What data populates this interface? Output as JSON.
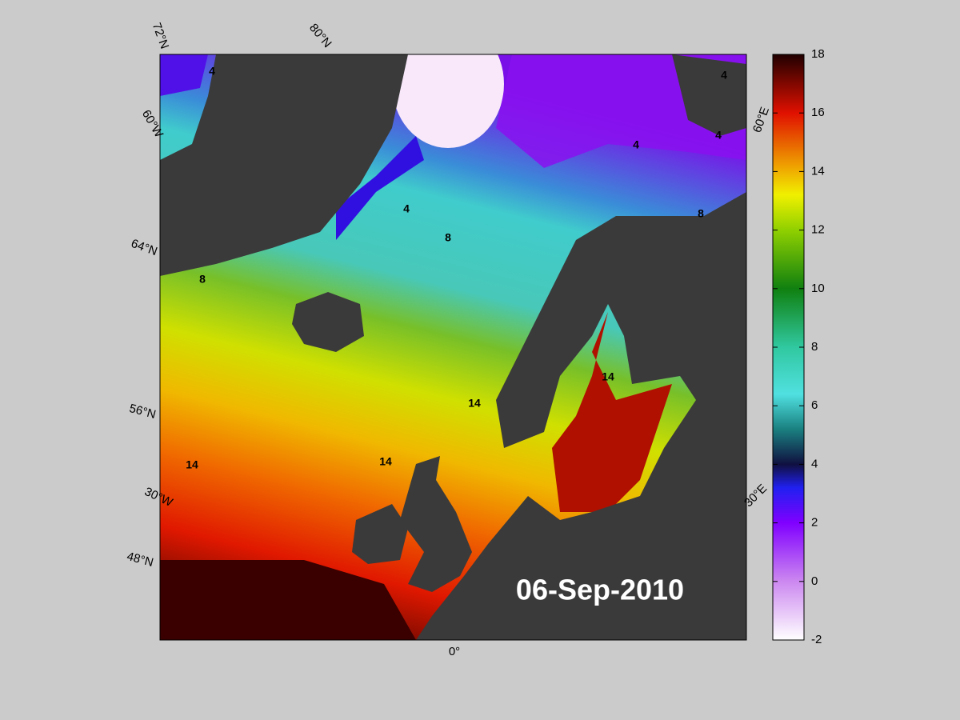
{
  "map": {
    "date_label": "06-Sep-2010",
    "grid_labels": [
      "72°N",
      "80°N",
      "60°W",
      "64°N",
      "56°N",
      "30°W",
      "48°N",
      "0°",
      "60°E",
      "30°E"
    ],
    "contour_labels": [
      "4",
      "4",
      "4",
      "4",
      "4",
      "8",
      "8",
      "8",
      "14",
      "14",
      "14",
      "14"
    ]
  },
  "colorbar": {
    "lim": [
      -2,
      18
    ],
    "ticks": [
      -2,
      0,
      2,
      4,
      6,
      8,
      10,
      12,
      14,
      16,
      18
    ]
  }
}
